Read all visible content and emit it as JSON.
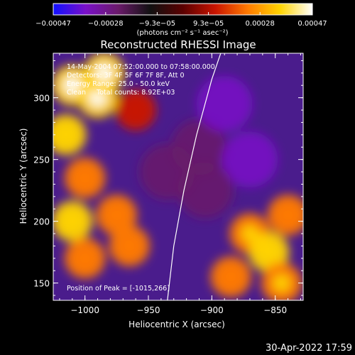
{
  "chart_data": {
    "type": "heatmap",
    "title": "Reconstructed RHESSI Image",
    "xlabel": "Heliocentric X (arcsec)",
    "ylabel": "Heliocentric Y (arcsec)",
    "xlim": [
      -1025,
      -828
    ],
    "ylim": [
      136,
      336
    ],
    "x_ticks": [
      -1000,
      -950,
      -900,
      -850
    ],
    "y_ticks": [
      150,
      200,
      250,
      300
    ],
    "x_tick_labels": [
      "−1000",
      "−950",
      "−900",
      "−850"
    ],
    "y_tick_labels": [
      "150",
      "200",
      "250",
      "300"
    ],
    "colorbar": {
      "ticks": [
        -0.00047,
        -0.00028,
        -9.3e-05,
        9.3e-05,
        0.00028,
        0.00047
      ],
      "tick_labels": [
        "−0.00047",
        "−0.00028",
        "−9.3e−05",
        "9.3e−05",
        "0.00028",
        "0.00047"
      ],
      "unit_label": "(photons cm⁻² s⁻¹ asec⁻²)",
      "colors": [
        "#1010ff",
        "#7a10c8",
        "#6a1a6a",
        "#111111",
        "#5a0000",
        "#c81400",
        "#ff7a00",
        "#ffd400",
        "#ffffff"
      ]
    },
    "annotations": [
      "14-May-2004 07:52:00.000 to 07:58:00.000",
      "Detectors: 3F 4F 5F 6F 7F 8F, Att 0",
      "Energy Range: 25.0 - 50.0 keV",
      "Clean     Total counts: 8.92E+03"
    ],
    "peak_label": "Position of Peak = [-1015,266]",
    "limb_curve": [
      [
        -935,
        136
      ],
      [
        -930,
        180
      ],
      [
        -922,
        225
      ],
      [
        -912,
        270
      ],
      [
        -900,
        315
      ],
      [
        -893,
        336
      ]
    ],
    "bright_regions": [
      {
        "x": -1010,
        "y": 310,
        "level": 0.0004
      },
      {
        "x": -990,
        "y": 300,
        "level": 0.00035
      },
      {
        "x": -1015,
        "y": 270,
        "level": 0.0003
      },
      {
        "x": -1000,
        "y": 235,
        "level": 0.00022
      },
      {
        "x": -1010,
        "y": 200,
        "level": 0.0003
      },
      {
        "x": -1000,
        "y": 170,
        "level": 0.00018
      },
      {
        "x": -975,
        "y": 205,
        "level": 0.0002
      },
      {
        "x": -965,
        "y": 180,
        "level": 0.00018
      },
      {
        "x": -960,
        "y": 290,
        "level": 0.00012
      },
      {
        "x": -985,
        "y": 320,
        "level": 0.00035
      },
      {
        "x": -870,
        "y": 190,
        "level": 0.00025
      },
      {
        "x": -855,
        "y": 175,
        "level": 0.0003
      },
      {
        "x": -845,
        "y": 150,
        "level": 0.00028
      },
      {
        "x": -885,
        "y": 155,
        "level": 0.00018
      },
      {
        "x": -840,
        "y": 205,
        "level": 0.0002
      }
    ],
    "dim_regions": [
      {
        "x": -910,
        "y": 260,
        "level": -0.00028
      },
      {
        "x": -890,
        "y": 295,
        "level": -0.00035
      },
      {
        "x": -870,
        "y": 250,
        "level": -0.0003
      },
      {
        "x": -905,
        "y": 225,
        "level": -0.00025
      },
      {
        "x": -935,
        "y": 240,
        "level": -0.0002
      }
    ]
  },
  "footer": {
    "timestamp": "30-Apr-2022 17:59"
  }
}
